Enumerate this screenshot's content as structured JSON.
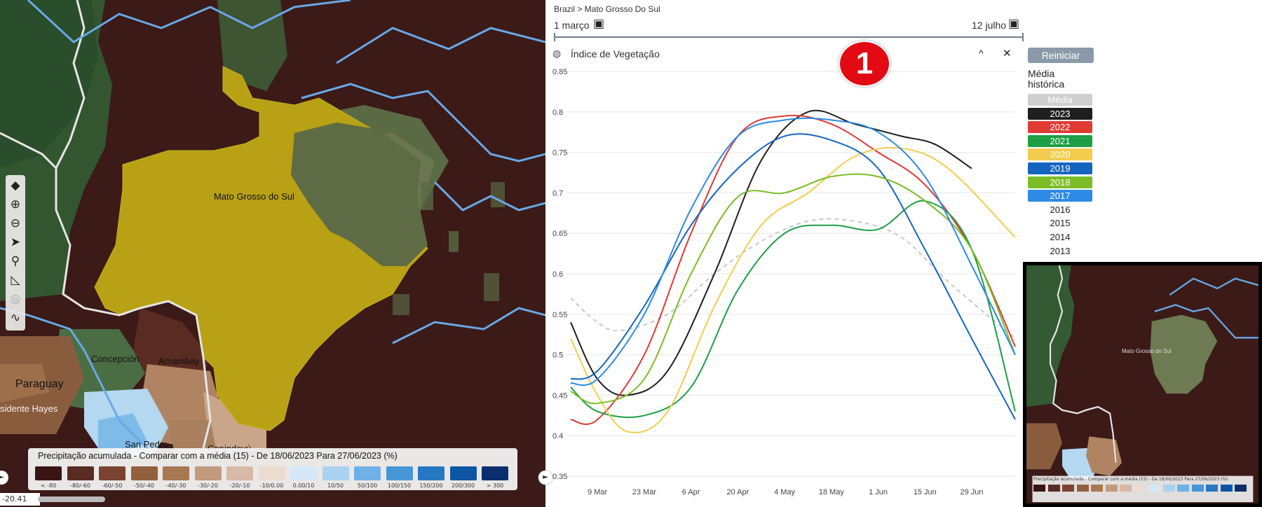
{
  "map": {
    "labels": {
      "region": "Mato Grosso do Sul",
      "concepcion": "Concepción",
      "amambay": "Amambay",
      "paraguay": "Paraguay",
      "presidente_hayes": "sidente Hayes",
      "san_pedro": "San Pedro",
      "canindeyu": "Canindeyú"
    },
    "toolbar": [
      {
        "name": "layers-icon",
        "glyph": "◆"
      },
      {
        "name": "zoom-in-icon",
        "glyph": "⊕"
      },
      {
        "name": "zoom-out-icon",
        "glyph": "⊖"
      },
      {
        "name": "navigate-arrow-icon",
        "glyph": "➤"
      },
      {
        "name": "search-icon",
        "glyph": "⚲"
      },
      {
        "name": "measure-icon",
        "glyph": "◺"
      },
      {
        "name": "locate-icon",
        "glyph": "◎"
      },
      {
        "name": "draw-path-icon",
        "glyph": "∿"
      }
    ],
    "legend": {
      "title": "Precipitação acumulada - Comparar com a média (15) - De 18/06/2023 Para 27/06/2023 (%)",
      "items": [
        {
          "label": "< -80",
          "color": "#3a1514"
        },
        {
          "label": "-80/-60",
          "color": "#5a2b22"
        },
        {
          "label": "-60/-50",
          "color": "#7b4332"
        },
        {
          "label": "-50/-40",
          "color": "#93603f"
        },
        {
          "label": "-40/-30",
          "color": "#a87852"
        },
        {
          "label": "-30/-20",
          "color": "#c29a7d"
        },
        {
          "label": "-20/-10",
          "color": "#d8b9a5"
        },
        {
          "label": "-10/0.00",
          "color": "#ecdcd0"
        },
        {
          "label": "0.00/10",
          "color": "#d6e8f7"
        },
        {
          "label": "10/50",
          "color": "#a9d2f0"
        },
        {
          "label": "50/100",
          "color": "#6fb1e6"
        },
        {
          "label": "100/150",
          "color": "#4796d6"
        },
        {
          "label": "150/200",
          "color": "#2877c4"
        },
        {
          "label": "200/300",
          "color": "#0d56a6"
        },
        {
          "label": "> 300",
          "color": "#0b2f6e"
        }
      ]
    },
    "coord": "-20.41",
    "scroll_left_glyph": "►"
  },
  "panel": {
    "breadcrumb": "Brazil > Mato Grosso Do Sul",
    "date_start": "1 março",
    "date_end": "12 julho",
    "calendar_icon": "▣",
    "chart_title": "Índice de Vegetação",
    "collapse_glyph": "^",
    "close_glyph": "✕",
    "badge": "1",
    "reset_label": "Reiniciar",
    "historical_label": "Média histórica",
    "years": [
      {
        "label": "Média",
        "color": "#cfcfcf"
      },
      {
        "label": "2023",
        "color": "#1f1f1f"
      },
      {
        "label": "2022",
        "color": "#e03a35"
      },
      {
        "label": "2021",
        "color": "#1e9e45"
      },
      {
        "label": "2020",
        "color": "#f2cd4e"
      },
      {
        "label": "2019",
        "color": "#1565c0"
      },
      {
        "label": "2018",
        "color": "#7cbd27"
      },
      {
        "label": "2017",
        "color": "#2d8be6"
      },
      {
        "label": "2016",
        "color": ""
      },
      {
        "label": "2015",
        "color": ""
      },
      {
        "label": "2014",
        "color": ""
      },
      {
        "label": "2013",
        "color": ""
      }
    ]
  },
  "chart_data": {
    "type": "line",
    "title": "Índice de Vegetação",
    "x_ticks": [
      "9 Mar",
      "23 Mar",
      "6 Apr",
      "20 Apr",
      "4 May",
      "18 May",
      "1 Jun",
      "15 Jun",
      "29 Jun"
    ],
    "ylim": [
      0.35,
      0.85
    ],
    "y_ticks": [
      0.35,
      0.4,
      0.45,
      0.5,
      0.55,
      0.6,
      0.65,
      0.7,
      0.75,
      0.8,
      0.85
    ],
    "grid": true,
    "x_domain_days": "Mar 1 – Jul 12",
    "series": [
      {
        "name": "Média",
        "color": "#c8c8c8",
        "dashed": true,
        "points": [
          [
            "Mar 1",
            0.57
          ],
          [
            "Mar 9",
            0.54
          ],
          [
            "Mar 16",
            0.53
          ],
          [
            "Mar 30",
            0.55
          ],
          [
            "Apr 13",
            0.6
          ],
          [
            "Apr 27",
            0.64
          ],
          [
            "May 11",
            0.665
          ],
          [
            "May 25",
            0.665
          ],
          [
            "Jun 8",
            0.645
          ],
          [
            "Jun 22",
            0.59
          ],
          [
            "Jul 12",
            0.52
          ]
        ]
      },
      {
        "name": "2023",
        "color": "#1f1f1f",
        "dashed": false,
        "points": [
          [
            "Mar 1",
            0.54
          ],
          [
            "Mar 9",
            0.47
          ],
          [
            "Mar 18",
            0.45
          ],
          [
            "Mar 30",
            0.48
          ],
          [
            "Apr 13",
            0.6
          ],
          [
            "Apr 27",
            0.74
          ],
          [
            "May 11",
            0.8
          ],
          [
            "May 25",
            0.785
          ],
          [
            "Jun 8",
            0.77
          ],
          [
            "Jun 18",
            0.76
          ],
          [
            "Jun 29",
            0.73
          ]
        ]
      },
      {
        "name": "2022",
        "color": "#e03a35",
        "dashed": false,
        "points": [
          [
            "Mar 1",
            0.42
          ],
          [
            "Mar 9",
            0.42
          ],
          [
            "Mar 23",
            0.5
          ],
          [
            "Apr 6",
            0.65
          ],
          [
            "Apr 20",
            0.77
          ],
          [
            "May 4",
            0.795
          ],
          [
            "May 18",
            0.785
          ],
          [
            "Jun 1",
            0.75
          ],
          [
            "Jun 15",
            0.71
          ],
          [
            "Jun 29",
            0.63
          ],
          [
            "Jul 12",
            0.51
          ]
        ]
      },
      {
        "name": "2021",
        "color": "#1e9e45",
        "dashed": false,
        "points": [
          [
            "Mar 1",
            0.46
          ],
          [
            "Mar 9",
            0.43
          ],
          [
            "Mar 23",
            0.425
          ],
          [
            "Apr 6",
            0.46
          ],
          [
            "Apr 20",
            0.58
          ],
          [
            "May 4",
            0.65
          ],
          [
            "May 18",
            0.66
          ],
          [
            "Jun 1",
            0.655
          ],
          [
            "Jun 15",
            0.69
          ],
          [
            "Jun 29",
            0.63
          ],
          [
            "Jul 12",
            0.43
          ]
        ]
      },
      {
        "name": "2020",
        "color": "#f2cd4e",
        "dashed": false,
        "points": [
          [
            "Mar 1",
            0.52
          ],
          [
            "Mar 9",
            0.45
          ],
          [
            "Mar 18",
            0.405
          ],
          [
            "Mar 30",
            0.43
          ],
          [
            "Apr 13",
            0.56
          ],
          [
            "Apr 27",
            0.66
          ],
          [
            "May 11",
            0.7
          ],
          [
            "May 25",
            0.745
          ],
          [
            "Jun 8",
            0.755
          ],
          [
            "Jun 22",
            0.73
          ],
          [
            "Jul 12",
            0.645
          ]
        ]
      },
      {
        "name": "2019",
        "color": "#1565c0",
        "dashed": false,
        "points": [
          [
            "Mar 1",
            0.47
          ],
          [
            "Mar 9",
            0.48
          ],
          [
            "Mar 23",
            0.56
          ],
          [
            "Apr 6",
            0.66
          ],
          [
            "Apr 20",
            0.73
          ],
          [
            "May 4",
            0.77
          ],
          [
            "May 18",
            0.765
          ],
          [
            "Jun 1",
            0.73
          ],
          [
            "Jun 15",
            0.63
          ],
          [
            "Jun 29",
            0.52
          ],
          [
            "Jul 12",
            0.42
          ]
        ]
      },
      {
        "name": "2018",
        "color": "#7cbd27",
        "dashed": false,
        "points": [
          [
            "Mar 1",
            0.455
          ],
          [
            "Mar 9",
            0.44
          ],
          [
            "Mar 23",
            0.47
          ],
          [
            "Apr 6",
            0.6
          ],
          [
            "Apr 20",
            0.695
          ],
          [
            "May 4",
            0.7
          ],
          [
            "May 18",
            0.72
          ],
          [
            "Jun 1",
            0.72
          ],
          [
            "Jun 15",
            0.69
          ],
          [
            "Jun 29",
            0.63
          ],
          [
            "Jul 12",
            0.5
          ]
        ]
      },
      {
        "name": "2017",
        "color": "#2d8be6",
        "dashed": false,
        "points": [
          [
            "Mar 1",
            0.465
          ],
          [
            "Mar 9",
            0.47
          ],
          [
            "Mar 23",
            0.55
          ],
          [
            "Apr 6",
            0.68
          ],
          [
            "Apr 20",
            0.77
          ],
          [
            "May 4",
            0.79
          ],
          [
            "May 18",
            0.79
          ],
          [
            "Jun 1",
            0.775
          ],
          [
            "Jun 15",
            0.72
          ],
          [
            "Jun 29",
            0.61
          ],
          [
            "Jul 12",
            0.5
          ]
        ]
      }
    ]
  }
}
